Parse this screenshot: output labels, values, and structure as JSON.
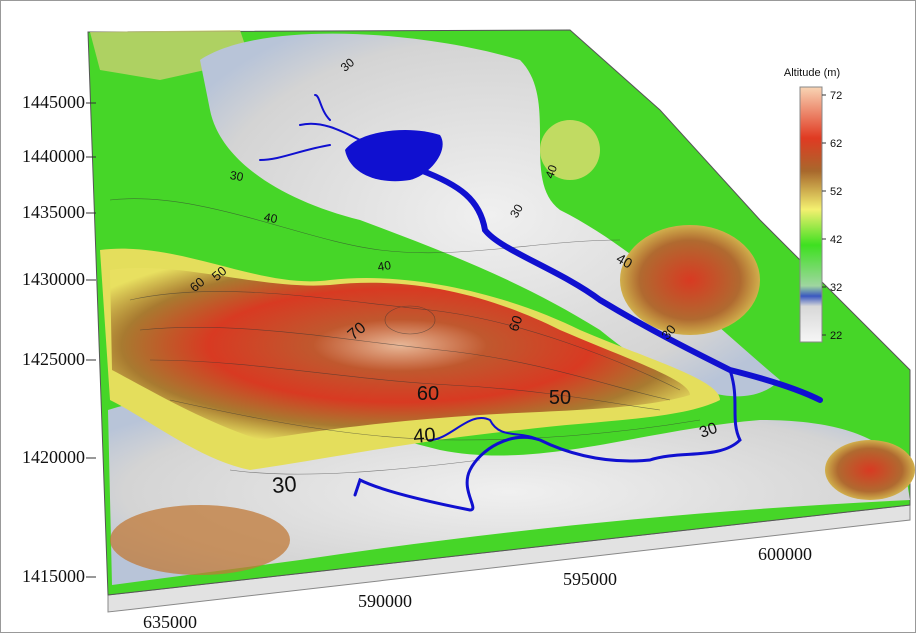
{
  "legend": {
    "title": "Altitude (m)",
    "ticks": [
      72,
      62,
      52,
      42,
      32,
      22
    ]
  },
  "y_axis_labels": [
    1445000,
    1440000,
    1435000,
    1430000,
    1425000,
    1420000,
    1415000
  ],
  "x_axis_labels": [
    635000,
    590000,
    595000,
    600000
  ],
  "contour_labels": [
    30,
    40,
    60,
    50,
    70,
    60,
    50,
    60,
    30,
    30,
    40,
    40,
    40,
    30,
    30,
    40,
    30
  ]
}
